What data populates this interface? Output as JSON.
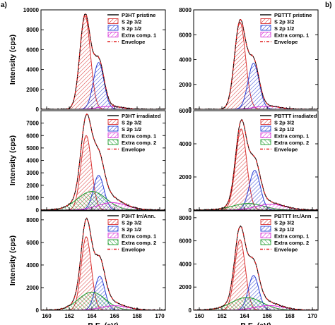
{
  "figure_labels": [
    "a)",
    "b)"
  ],
  "chart_data": [
    {
      "type": "line",
      "panel": "a-top",
      "col": 0,
      "row": 0,
      "xlabel": "",
      "ylabel": "Intensity (cps)",
      "xlim": [
        159.5,
        170.5
      ],
      "ylim": [
        0,
        10000
      ],
      "yticks": [
        0,
        2000,
        4000,
        6000,
        8000,
        10000
      ],
      "xticks": [
        160,
        162,
        164,
        166,
        168,
        170
      ],
      "legend_title": "P3HT pristine",
      "legend": [
        "S 2p 3/2",
        "S 2p 1/2",
        "Extra comp. 1",
        "Envelope"
      ],
      "series": [
        {
          "name": "S 2p 3/2",
          "center": 163.4,
          "amplitude": 9400,
          "fwhm": 1.1
        },
        {
          "name": "S 2p 1/2",
          "center": 164.6,
          "amplitude": 4700,
          "fwhm": 1.1
        },
        {
          "name": "Extra comp. 1",
          "center": 165.6,
          "amplitude": 300,
          "fwhm": 2.4
        }
      ]
    },
    {
      "type": "line",
      "panel": "a-middle",
      "col": 0,
      "row": 1,
      "xlabel": "",
      "ylabel": "Intensity (cps)",
      "xlim": [
        159.5,
        170.5
      ],
      "ylim": [
        0,
        8000
      ],
      "yticks": [
        0,
        1000,
        2000,
        3000,
        4000,
        5000,
        6000,
        7000
      ],
      "xticks": [
        160,
        162,
        164,
        166,
        168,
        170
      ],
      "legend_title": "P3HT irradiated",
      "legend": [
        "S 2p 3/2",
        "S 2p 1/2",
        "Extra comp. 1",
        "Extra comp. 2",
        "Envelope"
      ],
      "series": [
        {
          "name": "S 2p 3/2",
          "center": 163.5,
          "amplitude": 6000,
          "fwhm": 1.1
        },
        {
          "name": "S 2p 1/2",
          "center": 164.6,
          "amplitude": 2800,
          "fwhm": 1.1
        },
        {
          "name": "Extra comp. 1",
          "center": 165.8,
          "amplitude": 600,
          "fwhm": 3.0
        },
        {
          "name": "Extra comp. 2",
          "center": 164.0,
          "amplitude": 1500,
          "fwhm": 3.0
        }
      ]
    },
    {
      "type": "line",
      "panel": "a-bottom",
      "col": 0,
      "row": 2,
      "xlabel": "B.E. (eV)",
      "ylabel": "Intensity (cps)",
      "xlim": [
        159.5,
        170.5
      ],
      "ylim": [
        0,
        8800
      ],
      "yticks": [
        0,
        2000,
        4000,
        6000,
        8000
      ],
      "xticks": [
        160,
        162,
        164,
        166,
        168,
        170
      ],
      "legend_title": "P3HT Irr/Ann.",
      "legend": [
        "S 2p 3/2",
        "S 2p 1/2",
        "Extra comp. 1",
        "Extra comp. 2",
        "Envelope"
      ],
      "series": [
        {
          "name": "S 2p 3/2",
          "center": 163.5,
          "amplitude": 6500,
          "fwhm": 1.05
        },
        {
          "name": "S 2p 1/2",
          "center": 164.7,
          "amplitude": 3000,
          "fwhm": 1.05
        },
        {
          "name": "Extra comp. 1",
          "center": 166.0,
          "amplitude": 400,
          "fwhm": 2.8
        },
        {
          "name": "Extra comp. 2",
          "center": 164.0,
          "amplitude": 1600,
          "fwhm": 2.8
        }
      ]
    },
    {
      "type": "line",
      "panel": "b-top",
      "col": 1,
      "row": 0,
      "xlabel": "",
      "ylabel": "",
      "xlim": [
        159.5,
        170.5
      ],
      "ylim": [
        0,
        8000
      ],
      "yticks": [
        0,
        2000,
        4000,
        6000,
        8000
      ],
      "xticks": [
        160,
        162,
        164,
        166,
        168,
        170
      ],
      "legend_title": "PBTTT pristine",
      "legend": [
        "S 2p 3/2",
        "S 2p 1/2",
        "Extra comp. 1",
        "Envelope"
      ],
      "series": [
        {
          "name": "S 2p 3/2",
          "center": 163.6,
          "amplitude": 7000,
          "fwhm": 1.15
        },
        {
          "name": "S 2p 1/2",
          "center": 164.8,
          "amplitude": 3700,
          "fwhm": 1.15
        },
        {
          "name": "Extra comp. 1",
          "center": 166.0,
          "amplitude": 250,
          "fwhm": 2.6
        }
      ]
    },
    {
      "type": "line",
      "panel": "b-middle",
      "col": 1,
      "row": 1,
      "xlabel": "",
      "ylabel": "",
      "xlim": [
        159.5,
        170.5
      ],
      "ylim": [
        0,
        6000
      ],
      "yticks": [
        0,
        2000,
        4000,
        6000
      ],
      "xticks": [
        160,
        162,
        164,
        166,
        168,
        170
      ],
      "legend_title": "PBTTT irradiated",
      "legend": [
        "S 2p 3/2",
        "S 2p 1/2",
        "Extra comp. 1",
        "Extra comp. 2",
        "Envelope"
      ],
      "series": [
        {
          "name": "S 2p 3/2",
          "center": 163.7,
          "amplitude": 4900,
          "fwhm": 1.15
        },
        {
          "name": "S 2p 1/2",
          "center": 164.9,
          "amplitude": 2400,
          "fwhm": 1.15
        },
        {
          "name": "Extra comp. 1",
          "center": 166.3,
          "amplitude": 350,
          "fwhm": 3.0
        },
        {
          "name": "Extra comp. 2",
          "center": 164.3,
          "amplitude": 400,
          "fwhm": 3.2
        }
      ]
    },
    {
      "type": "line",
      "panel": "b-bottom",
      "col": 1,
      "row": 2,
      "xlabel": "B.E. (eV)",
      "ylabel": "",
      "xlim": [
        159.5,
        170.5
      ],
      "ylim": [
        0,
        8600
      ],
      "yticks": [
        0,
        2000,
        4000,
        6000,
        8000
      ],
      "xticks": [
        160,
        162,
        164,
        166,
        168,
        170
      ],
      "legend_title": "PBTTT Irr./Ann",
      "legend": [
        "S 2p 3/2",
        "S 2p 1/2",
        "Extra comp. 1",
        "Extra comp. 2",
        "Envelope"
      ],
      "series": [
        {
          "name": "S 2p 3/2",
          "center": 163.6,
          "amplitude": 6100,
          "fwhm": 1.1
        },
        {
          "name": "S 2p 1/2",
          "center": 164.8,
          "amplitude": 3000,
          "fwhm": 1.1
        },
        {
          "name": "Extra comp. 1",
          "center": 166.2,
          "amplitude": 400,
          "fwhm": 3.0
        },
        {
          "name": "Extra comp. 2",
          "center": 164.2,
          "amplitude": 1100,
          "fwhm": 3.2
        }
      ]
    }
  ],
  "style": {
    "colors": {
      "S 2p 3/2": "#d93030",
      "S 2p 1/2": "#2a3fd6",
      "Extra comp. 1": "#d830d8",
      "Extra comp. 2": "#1c9a2a",
      "Envelope": "#e02020",
      "data": "#000000"
    },
    "fill_pattern": "hatched"
  }
}
